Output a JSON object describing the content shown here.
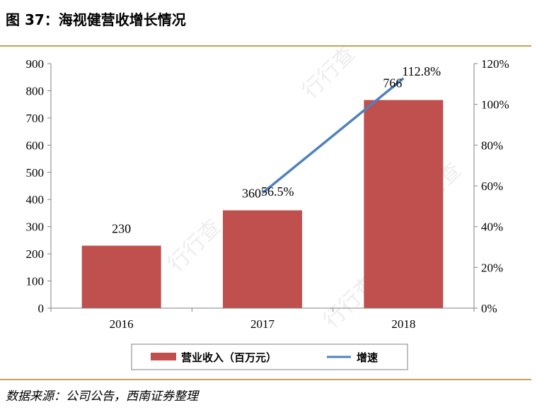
{
  "figure": {
    "title": "图 37：海视健营收增长情况",
    "source": "数据来源：公司公告，西南证券整理",
    "watermark": "行行查"
  },
  "colors": {
    "bar": "#c0504d",
    "line": "#4f81bd",
    "rule": "#c8a25a",
    "axis": "#808080"
  },
  "chart_data": {
    "type": "bar",
    "categories": [
      "2016",
      "2017",
      "2018"
    ],
    "series": [
      {
        "name": "营业收入（百万元）",
        "type": "bar",
        "axis": "left",
        "values": [
          230,
          360,
          766
        ],
        "labels": [
          "230",
          "360",
          "766"
        ]
      },
      {
        "name": "增速",
        "type": "line",
        "axis": "right",
        "values": [
          null,
          56.5,
          112.8
        ],
        "labels": [
          "",
          "56.5%",
          "112.8%"
        ]
      }
    ],
    "y_left": {
      "lim": [
        0,
        900
      ],
      "ticks": [
        "0",
        "100",
        "200",
        "300",
        "400",
        "500",
        "600",
        "700",
        "800",
        "900"
      ]
    },
    "y_right": {
      "lim": [
        0,
        120
      ],
      "ticks": [
        "0%",
        "20%",
        "40%",
        "60%",
        "80%",
        "100%",
        "120%"
      ]
    },
    "grid": false,
    "legend": "bottom"
  }
}
